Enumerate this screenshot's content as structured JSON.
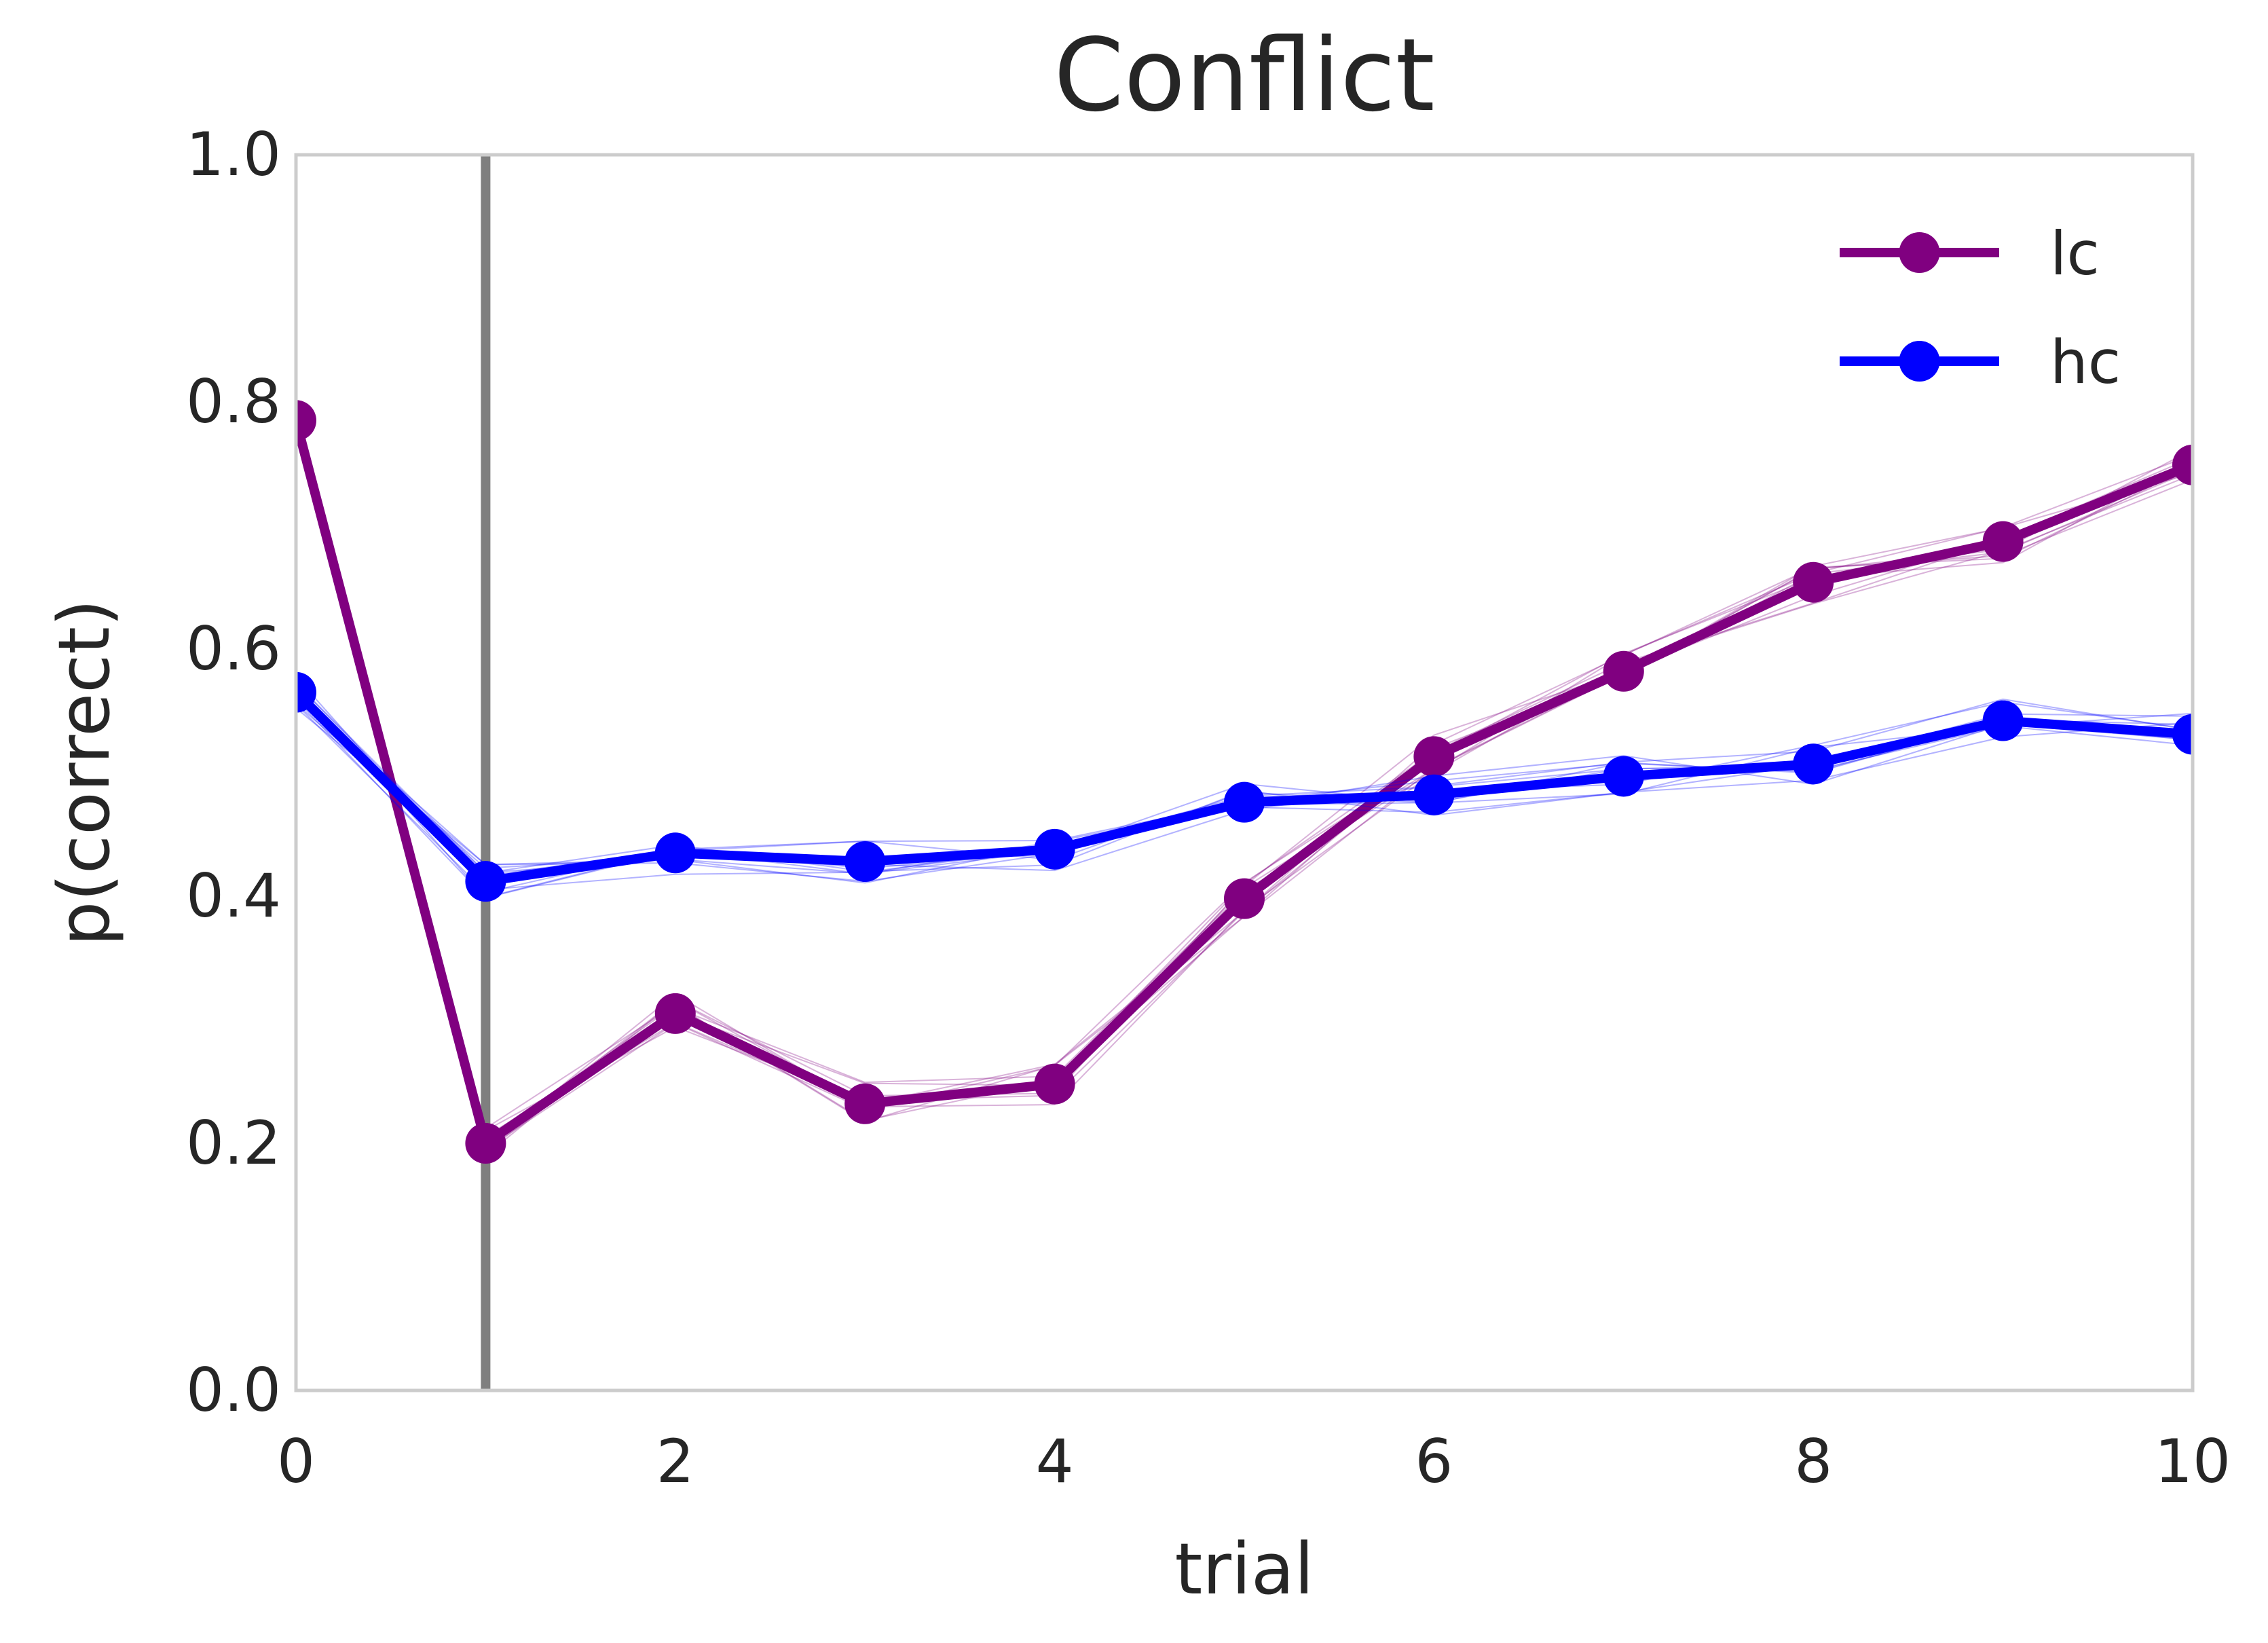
{
  "chart_data": {
    "type": "line",
    "title": "Conflict",
    "xlabel": "trial",
    "ylabel": "p(correct)",
    "xlim": [
      0,
      10
    ],
    "ylim": [
      0.0,
      1.0
    ],
    "xticks": [
      "0",
      "2",
      "4",
      "6",
      "8",
      "10"
    ],
    "yticks": [
      "0.0",
      "0.2",
      "0.4",
      "0.6",
      "0.8",
      "1.0"
    ],
    "grid": false,
    "legend_position": "top-right",
    "vline_x": 1,
    "vline_color": "#7f7f7f",
    "x": [
      0,
      1,
      2,
      3,
      4,
      5,
      6,
      7,
      8,
      9,
      10
    ],
    "series": [
      {
        "name": "lc",
        "color": "#800080",
        "values": [
          0.785,
          0.2,
          0.305,
          0.232,
          0.248,
          0.398,
          0.513,
          0.582,
          0.654,
          0.687,
          0.749
        ]
      },
      {
        "name": "hc",
        "color": "#0000ff",
        "values": [
          0.565,
          0.412,
          0.435,
          0.428,
          0.438,
          0.476,
          0.482,
          0.497,
          0.507,
          0.542,
          0.531
        ]
      }
    ]
  }
}
